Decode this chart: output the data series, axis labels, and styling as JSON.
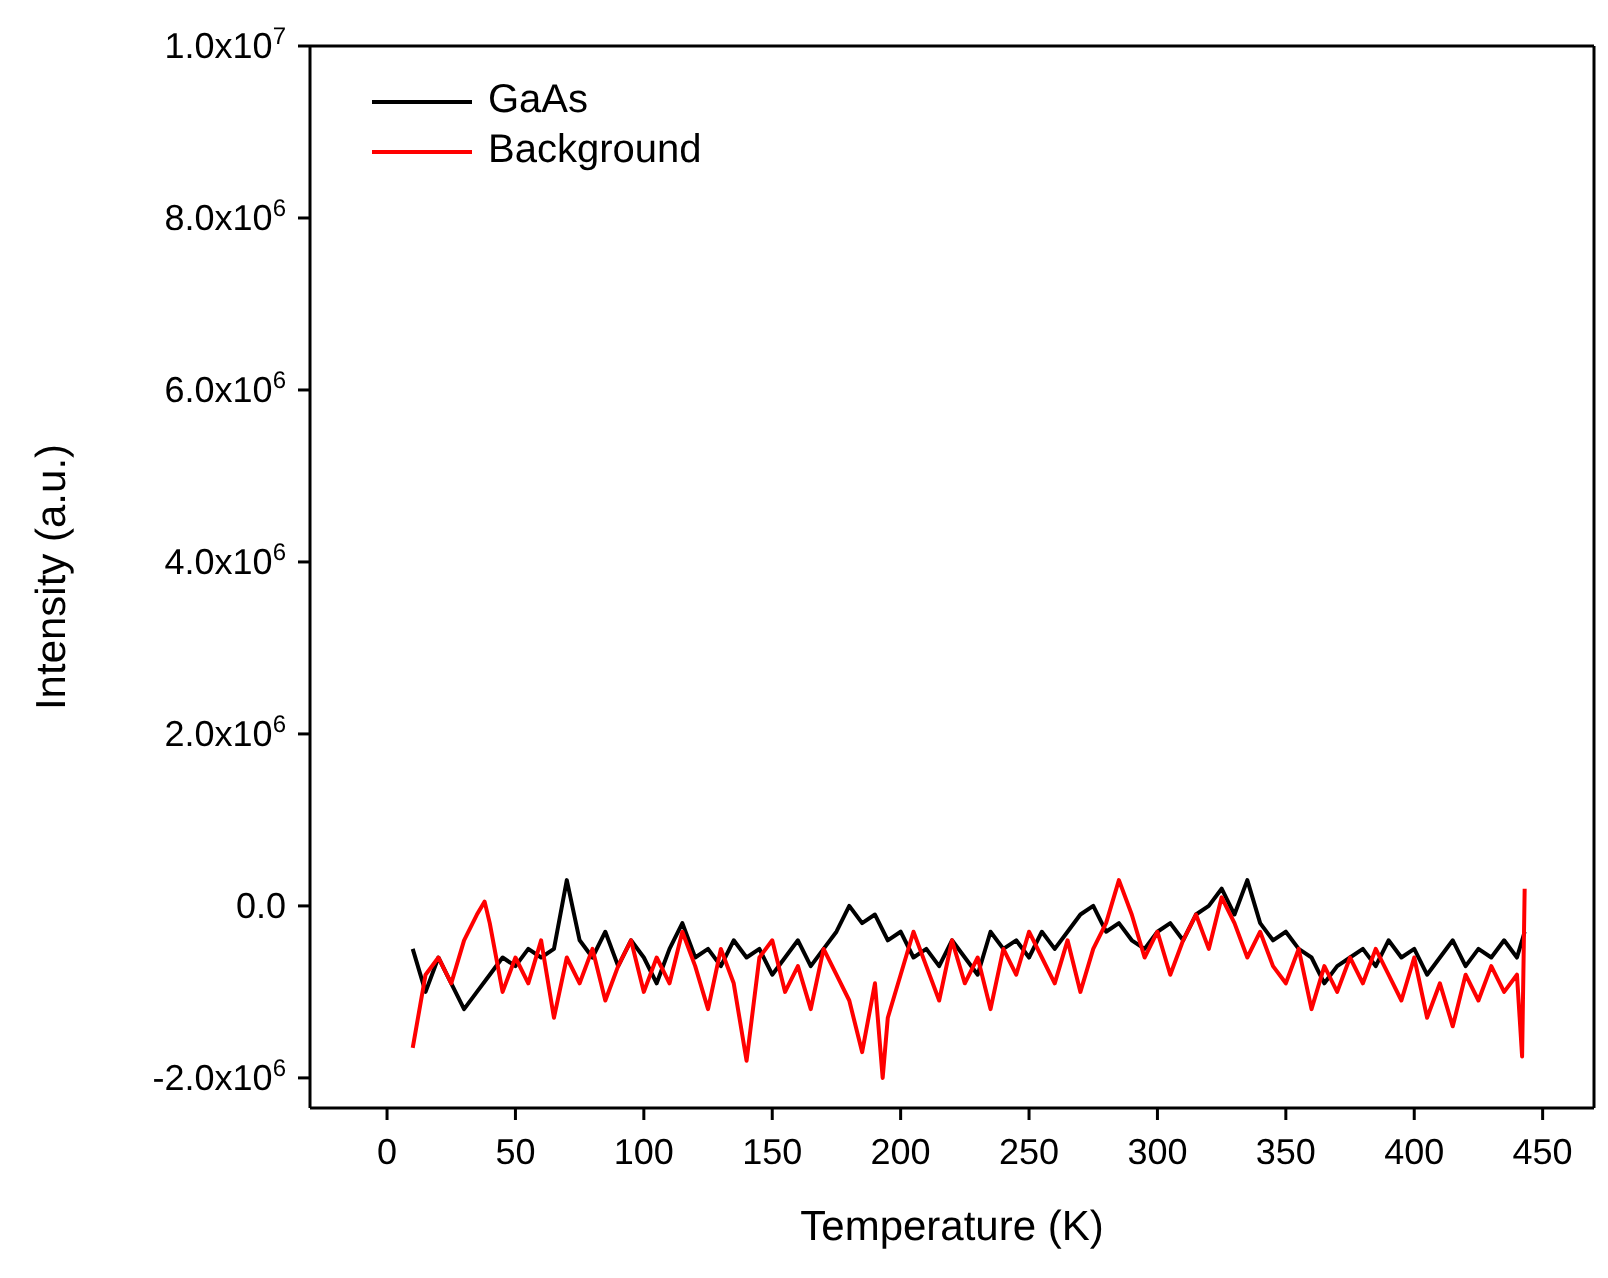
{
  "chart_data": {
    "type": "line",
    "xlabel": "Temperature (K)",
    "ylabel": "Intensity (a.u.)",
    "xlim": [
      -30,
      470
    ],
    "xticks": [
      0,
      50,
      100,
      150,
      200,
      250,
      300,
      350,
      400,
      450
    ],
    "ylim": [
      -2350000,
      10000000
    ],
    "yticks": [
      {
        "value": -2000000,
        "label": "-2.0x10$^{6}$"
      },
      {
        "value": 0,
        "label": "0.0"
      },
      {
        "value": 2000000,
        "label": "2.0x10$^{6}$"
      },
      {
        "value": 4000000,
        "label": "4.0x10$^{6}$"
      },
      {
        "value": 6000000,
        "label": "6.0x10$^{6}$"
      },
      {
        "value": 8000000,
        "label": "8.0x10$^{6}$"
      },
      {
        "value": 10000000,
        "label": "1.0x10$^{7}$"
      }
    ],
    "legend": "top left",
    "marker": "none",
    "line_style": "solid",
    "series": [
      {
        "name": "GaAs",
        "color": "#000000",
        "x": [
          10,
          15,
          20,
          25,
          30,
          35,
          40,
          45,
          50,
          55,
          60,
          65,
          70,
          75,
          80,
          85,
          90,
          95,
          100,
          105,
          110,
          115,
          120,
          125,
          130,
          135,
          140,
          145,
          150,
          155,
          160,
          165,
          170,
          175,
          180,
          185,
          190,
          195,
          200,
          205,
          210,
          215,
          220,
          225,
          230,
          235,
          240,
          245,
          250,
          255,
          260,
          265,
          270,
          275,
          280,
          285,
          290,
          295,
          300,
          305,
          310,
          315,
          320,
          325,
          330,
          335,
          340,
          345,
          350,
          355,
          360,
          365,
          370,
          375,
          380,
          385,
          390,
          395,
          400,
          405,
          410,
          415,
          420,
          425,
          430,
          435,
          440,
          443
        ],
        "values": [
          -500000,
          -1000000,
          -600000,
          -900000,
          -1200000,
          -1000000,
          -800000,
          -600000,
          -700000,
          -500000,
          -600000,
          -500000,
          300000,
          -400000,
          -600000,
          -300000,
          -700000,
          -400000,
          -600000,
          -900000,
          -500000,
          -200000,
          -600000,
          -500000,
          -700000,
          -400000,
          -600000,
          -500000,
          -800000,
          -600000,
          -400000,
          -700000,
          -500000,
          -300000,
          0,
          -200000,
          -100000,
          -400000,
          -300000,
          -600000,
          -500000,
          -700000,
          -400000,
          -600000,
          -800000,
          -300000,
          -500000,
          -400000,
          -600000,
          -300000,
          -500000,
          -300000,
          -100000,
          0,
          -300000,
          -200000,
          -400000,
          -500000,
          -300000,
          -200000,
          -400000,
          -100000,
          0,
          200000,
          -100000,
          300000,
          -200000,
          -400000,
          -300000,
          -500000,
          -600000,
          -900000,
          -700000,
          -600000,
          -500000,
          -700000,
          -400000,
          -600000,
          -500000,
          -800000,
          -600000,
          -400000,
          -700000,
          -500000,
          -600000,
          -400000,
          -600000,
          -300000
        ]
      },
      {
        "name": "Background",
        "color": "#ff0000",
        "x": [
          10,
          15,
          20,
          25,
          30,
          35,
          38,
          40,
          45,
          50,
          55,
          60,
          65,
          70,
          75,
          80,
          85,
          90,
          95,
          100,
          105,
          110,
          115,
          120,
          125,
          130,
          135,
          140,
          145,
          150,
          155,
          160,
          165,
          170,
          175,
          180,
          185,
          190,
          193,
          195,
          200,
          205,
          210,
          215,
          220,
          225,
          230,
          235,
          240,
          245,
          250,
          255,
          260,
          265,
          270,
          275,
          280,
          285,
          290,
          295,
          300,
          305,
          310,
          315,
          320,
          325,
          330,
          335,
          340,
          345,
          350,
          355,
          360,
          365,
          370,
          375,
          380,
          385,
          390,
          395,
          400,
          405,
          410,
          415,
          420,
          425,
          430,
          435,
          440,
          442,
          443
        ],
        "values": [
          -1650000,
          -800000,
          -600000,
          -900000,
          -400000,
          -100000,
          50000,
          -200000,
          -1000000,
          -600000,
          -900000,
          -400000,
          -1300000,
          -600000,
          -900000,
          -500000,
          -1100000,
          -700000,
          -400000,
          -1000000,
          -600000,
          -900000,
          -300000,
          -700000,
          -1200000,
          -500000,
          -900000,
          -1800000,
          -600000,
          -400000,
          -1000000,
          -700000,
          -1200000,
          -500000,
          -800000,
          -1100000,
          -1700000,
          -900000,
          -2000000,
          -1300000,
          -800000,
          -300000,
          -700000,
          -1100000,
          -400000,
          -900000,
          -600000,
          -1200000,
          -500000,
          -800000,
          -300000,
          -600000,
          -900000,
          -400000,
          -1000000,
          -500000,
          -200000,
          300000,
          -100000,
          -600000,
          -300000,
          -800000,
          -400000,
          -100000,
          -500000,
          100000,
          -200000,
          -600000,
          -300000,
          -700000,
          -900000,
          -500000,
          -1200000,
          -700000,
          -1000000,
          -600000,
          -900000,
          -500000,
          -800000,
          -1100000,
          -600000,
          -1300000,
          -900000,
          -1400000,
          -800000,
          -1100000,
          -700000,
          -1000000,
          -800000,
          -1750000,
          200000
        ]
      }
    ]
  }
}
